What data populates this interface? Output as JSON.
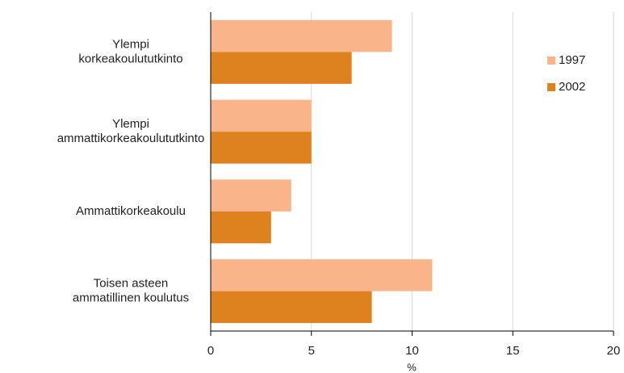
{
  "chart_data": {
    "type": "hbar",
    "categories": [
      "Ylempi\nkorkeakoulututkinto",
      "Ylempi\nammattikorkeakoulututkinto",
      "Ammattikorkeakoulu",
      "Toisen asteen\nammatillinen koulutus"
    ],
    "series": [
      {
        "name": "1997",
        "color": "#f9b48a",
        "values": [
          9,
          5,
          4,
          11
        ]
      },
      {
        "name": "2002",
        "color": "#de8220",
        "values": [
          7,
          5,
          3,
          8
        ]
      }
    ],
    "xlim": [
      0,
      20
    ],
    "xticks": [
      0,
      5,
      10,
      15,
      20
    ],
    "xlabel": "%",
    "grid": true,
    "legend": "upper right"
  }
}
